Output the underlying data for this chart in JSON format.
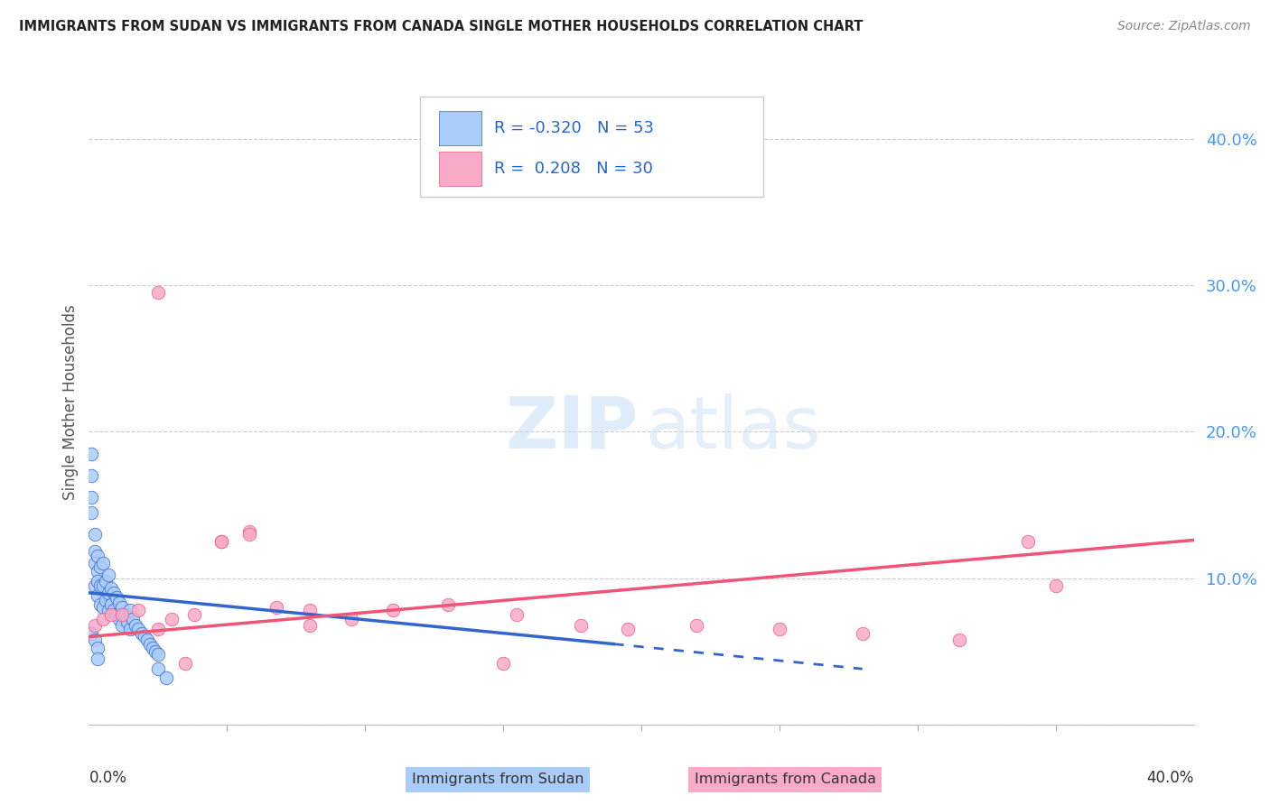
{
  "title": "IMMIGRANTS FROM SUDAN VS IMMIGRANTS FROM CANADA SINGLE MOTHER HOUSEHOLDS CORRELATION CHART",
  "source": "Source: ZipAtlas.com",
  "ylabel": "Single Mother Households",
  "legend_label1": "Immigrants from Sudan",
  "legend_label2": "Immigrants from Canada",
  "R1": -0.32,
  "N1": 53,
  "R2": 0.208,
  "N2": 30,
  "color_sudan": "#aaccf8",
  "color_canada": "#f8aac8",
  "color_sudan_line": "#3366cc",
  "color_canada_line": "#ee5577",
  "background": "#ffffff",
  "xlim": [
    0.0,
    0.4
  ],
  "ylim": [
    0.0,
    0.44
  ],
  "yticks": [
    0.0,
    0.1,
    0.2,
    0.3,
    0.4
  ],
  "ytick_labels": [
    "",
    "10.0%",
    "20.0%",
    "30.0%",
    "40.0%"
  ],
  "xtick_minor": [
    0.05,
    0.1,
    0.15,
    0.2,
    0.25,
    0.3,
    0.35,
    0.4
  ],
  "sudan_x": [
    0.001,
    0.001,
    0.001,
    0.002,
    0.002,
    0.002,
    0.002,
    0.003,
    0.003,
    0.003,
    0.003,
    0.004,
    0.004,
    0.004,
    0.005,
    0.005,
    0.005,
    0.006,
    0.006,
    0.007,
    0.007,
    0.007,
    0.008,
    0.008,
    0.009,
    0.009,
    0.01,
    0.01,
    0.011,
    0.011,
    0.012,
    0.012,
    0.013,
    0.014,
    0.015,
    0.015,
    0.016,
    0.017,
    0.018,
    0.019,
    0.02,
    0.021,
    0.022,
    0.023,
    0.024,
    0.025,
    0.001,
    0.002,
    0.003,
    0.025,
    0.028,
    0.003,
    0.001
  ],
  "sudan_y": [
    0.17,
    0.155,
    0.145,
    0.13,
    0.118,
    0.11,
    0.095,
    0.115,
    0.105,
    0.098,
    0.088,
    0.108,
    0.095,
    0.082,
    0.11,
    0.095,
    0.08,
    0.098,
    0.085,
    0.102,
    0.09,
    0.078,
    0.093,
    0.082,
    0.09,
    0.078,
    0.087,
    0.075,
    0.083,
    0.072,
    0.08,
    0.068,
    0.075,
    0.07,
    0.078,
    0.065,
    0.072,
    0.068,
    0.065,
    0.062,
    0.06,
    0.058,
    0.055,
    0.052,
    0.05,
    0.048,
    0.062,
    0.058,
    0.052,
    0.038,
    0.032,
    0.045,
    0.185
  ],
  "canada_x": [
    0.002,
    0.005,
    0.008,
    0.012,
    0.018,
    0.025,
    0.03,
    0.038,
    0.048,
    0.058,
    0.068,
    0.08,
    0.095,
    0.11,
    0.13,
    0.155,
    0.178,
    0.195,
    0.048,
    0.058,
    0.22,
    0.25,
    0.28,
    0.315,
    0.35,
    0.025,
    0.035,
    0.15,
    0.34,
    0.08
  ],
  "canada_y": [
    0.068,
    0.072,
    0.075,
    0.075,
    0.078,
    0.065,
    0.072,
    0.075,
    0.125,
    0.132,
    0.08,
    0.068,
    0.072,
    0.078,
    0.082,
    0.075,
    0.068,
    0.065,
    0.125,
    0.13,
    0.068,
    0.065,
    0.062,
    0.058,
    0.095,
    0.295,
    0.042,
    0.042,
    0.125,
    0.078
  ],
  "sudan_trend_x": [
    0.0,
    0.19,
    0.28
  ],
  "sudan_trend_solid_end": 0.19,
  "sudan_trend_dash_end": 0.28,
  "sudan_trend_y_start": 0.09,
  "sudan_trend_y_end": 0.055,
  "sudan_trend_y_dash_end": 0.038,
  "canada_trend_x_start": 0.0,
  "canada_trend_x_end": 0.4,
  "canada_trend_y_start": 0.06,
  "canada_trend_y_end": 0.126
}
